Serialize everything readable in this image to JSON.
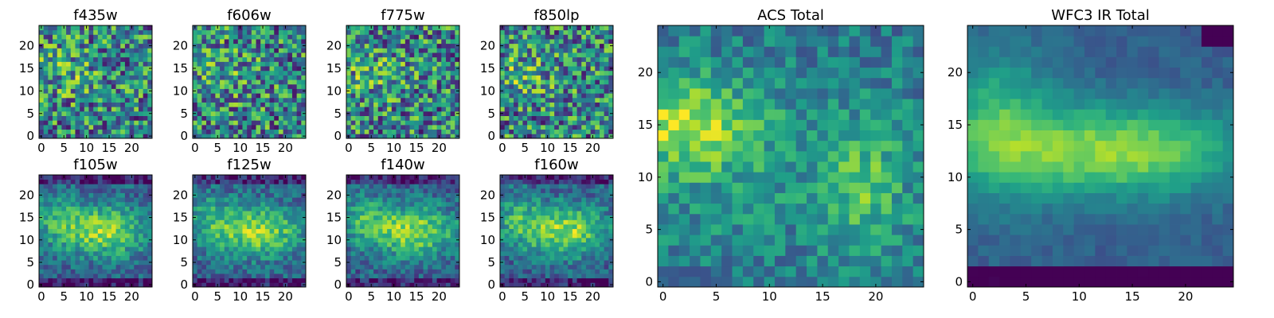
{
  "chart_data": [
    {
      "type": "heatmap",
      "title": "f435w",
      "pattern": "noise",
      "seed": 11,
      "grid": [
        25,
        25
      ],
      "xticks": [
        "0",
        "5",
        "10",
        "15",
        "20"
      ],
      "yticks": [
        "0",
        "5",
        "10",
        "15",
        "20"
      ],
      "xlim": [
        0,
        24
      ],
      "ylim": [
        0,
        24
      ],
      "colormap": "viridis",
      "colorbar": false
    },
    {
      "type": "heatmap",
      "title": "f606w",
      "pattern": "noise",
      "seed": 23,
      "grid": [
        25,
        25
      ],
      "xticks": [
        "0",
        "5",
        "10",
        "15",
        "20"
      ],
      "yticks": [
        "0",
        "5",
        "10",
        "15",
        "20"
      ],
      "xlim": [
        0,
        24
      ],
      "ylim": [
        0,
        24
      ],
      "colormap": "viridis",
      "colorbar": false
    },
    {
      "type": "heatmap",
      "title": "f775w",
      "pattern": "noise",
      "seed": 37,
      "grid": [
        25,
        25
      ],
      "xticks": [
        "0",
        "5",
        "10",
        "15",
        "20"
      ],
      "yticks": [
        "0",
        "5",
        "10",
        "15",
        "20"
      ],
      "xlim": [
        0,
        24
      ],
      "ylim": [
        0,
        24
      ],
      "colormap": "viridis",
      "colorbar": false
    },
    {
      "type": "heatmap",
      "title": "f850lp",
      "pattern": "noise",
      "seed": 41,
      "grid": [
        25,
        25
      ],
      "xticks": [
        "0",
        "5",
        "10",
        "15",
        "20"
      ],
      "yticks": [
        "0",
        "5",
        "10",
        "15",
        "20"
      ],
      "xlim": [
        0,
        24
      ],
      "ylim": [
        0,
        24
      ],
      "colormap": "viridis",
      "colorbar": false
    },
    {
      "type": "heatmap",
      "title": "f105w",
      "pattern": "blob",
      "seed": 53,
      "grid": [
        25,
        25
      ],
      "xticks": [
        "0",
        "5",
        "10",
        "15",
        "20"
      ],
      "yticks": [
        "0",
        "5",
        "10",
        "15",
        "20"
      ],
      "xlim": [
        0,
        24
      ],
      "ylim": [
        0,
        24
      ],
      "colormap": "viridis",
      "colorbar": false
    },
    {
      "type": "heatmap",
      "title": "f125w",
      "pattern": "blob",
      "seed": 67,
      "grid": [
        25,
        25
      ],
      "xticks": [
        "0",
        "5",
        "10",
        "15",
        "20"
      ],
      "yticks": [
        "0",
        "5",
        "10",
        "15",
        "20"
      ],
      "xlim": [
        0,
        24
      ],
      "ylim": [
        0,
        24
      ],
      "colormap": "viridis",
      "colorbar": false
    },
    {
      "type": "heatmap",
      "title": "f140w",
      "pattern": "blob",
      "seed": 71,
      "grid": [
        25,
        25
      ],
      "xticks": [
        "0",
        "5",
        "10",
        "15",
        "20"
      ],
      "yticks": [
        "0",
        "5",
        "10",
        "15",
        "20"
      ],
      "xlim": [
        0,
        24
      ],
      "ylim": [
        0,
        24
      ],
      "colormap": "viridis",
      "colorbar": false
    },
    {
      "type": "heatmap",
      "title": "f160w",
      "pattern": "blob",
      "seed": 83,
      "grid": [
        25,
        25
      ],
      "xticks": [
        "0",
        "5",
        "10",
        "15",
        "20"
      ],
      "yticks": [
        "0",
        "5",
        "10",
        "15",
        "20"
      ],
      "xlim": [
        0,
        24
      ],
      "ylim": [
        0,
        24
      ],
      "colormap": "viridis",
      "colorbar": false
    },
    {
      "type": "heatmap",
      "title": "ACS Total",
      "pattern": "acs",
      "seed": 97,
      "grid": [
        25,
        25
      ],
      "xticks": [
        "0",
        "5",
        "10",
        "15",
        "20"
      ],
      "yticks": [
        "0",
        "5",
        "10",
        "15",
        "20"
      ],
      "xlim": [
        0,
        24
      ],
      "ylim": [
        0,
        24
      ],
      "colormap": "viridis",
      "colorbar": false
    },
    {
      "type": "heatmap",
      "title": "WFC3 IR Total",
      "pattern": "wfc3",
      "seed": 101,
      "grid": [
        25,
        25
      ],
      "xticks": [
        "0",
        "5",
        "10",
        "15",
        "20"
      ],
      "yticks": [
        "0",
        "5",
        "10",
        "15",
        "20"
      ],
      "xlim": [
        0,
        24
      ],
      "ylim": [
        0,
        24
      ],
      "colormap": "viridis",
      "colorbar": false
    }
  ]
}
